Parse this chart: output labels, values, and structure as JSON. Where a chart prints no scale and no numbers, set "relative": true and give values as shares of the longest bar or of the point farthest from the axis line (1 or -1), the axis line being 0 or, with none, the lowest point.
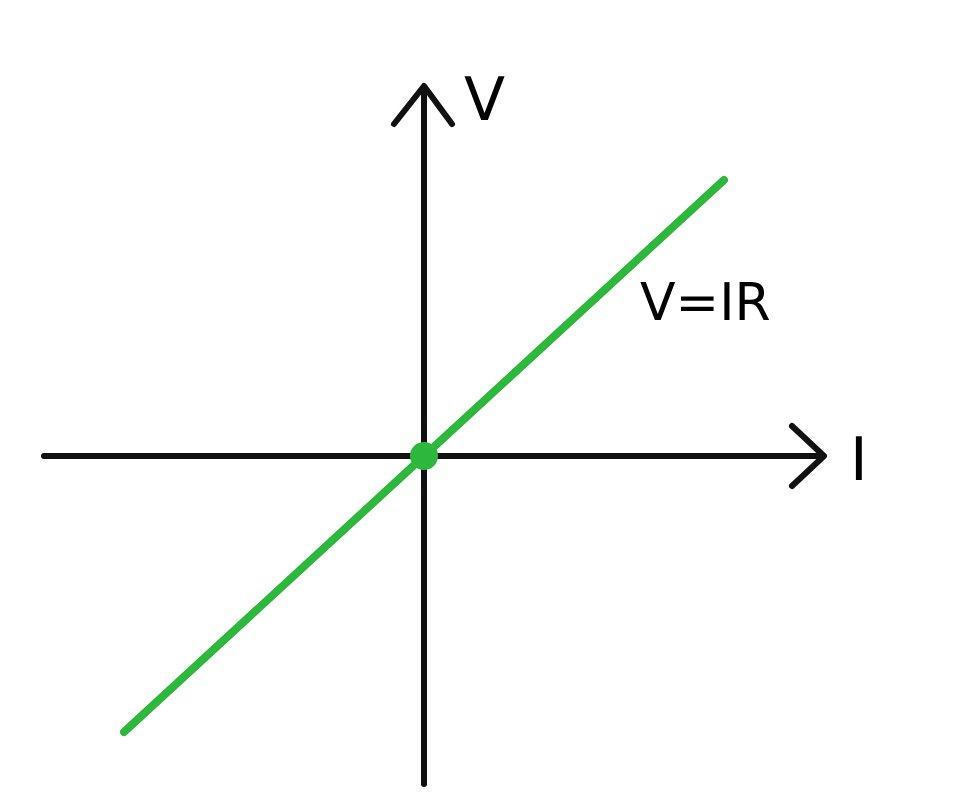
{
  "chart_data": {
    "type": "line",
    "relative": true,
    "xlabel": "I",
    "ylabel": "V",
    "annotations": [
      "V=IR"
    ],
    "categories": [
      null,
      null,
      null
    ],
    "series": [
      {
        "color": "#2db83d",
        "values": [
          -1,
          0,
          1
        ]
      }
    ]
  }
}
